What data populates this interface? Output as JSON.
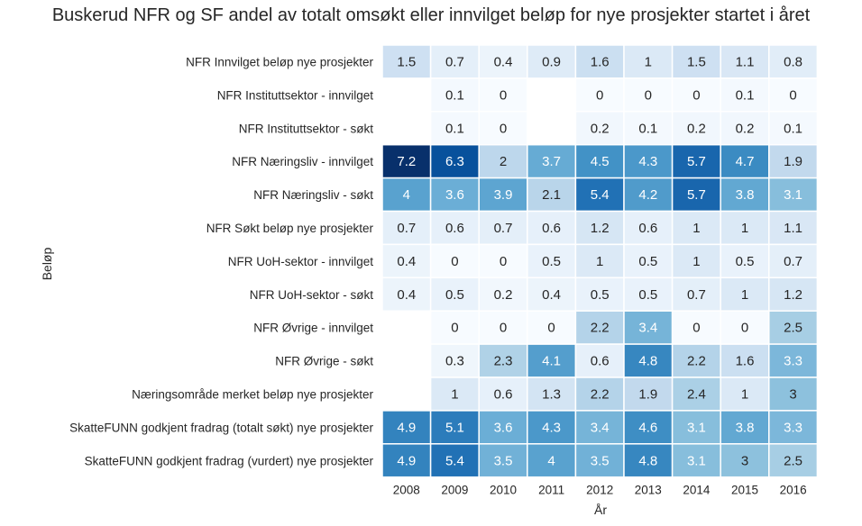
{
  "chart_data": {
    "type": "heatmap",
    "title": "Buskerud NFR og SF andel av totalt omsøkt eller innvilget beløp for nye prosjekter startet i året",
    "xlabel": "År",
    "ylabel": "Beløp",
    "colormap": "Blues",
    "vmin": 0,
    "vmax": 7.2,
    "x": [
      "2008",
      "2009",
      "2010",
      "2011",
      "2012",
      "2013",
      "2014",
      "2015",
      "2016"
    ],
    "y": [
      "NFR Innvilget beløp nye prosjekter",
      "NFR Instituttsektor - innvilget",
      "NFR Instituttsektor - søkt",
      "NFR Næringsliv - innvilget",
      "NFR Næringsliv - søkt",
      "NFR Søkt beløp nye prosjekter",
      "NFR UoH-sektor - innvilget",
      "NFR UoH-sektor - søkt",
      "NFR Øvrige - innvilget",
      "NFR Øvrige - søkt",
      "Næringsområde merket beløp nye prosjekter",
      "SkatteFUNN godkjent fradrag (totalt søkt) nye prosjekter",
      "SkatteFUNN godkjent fradrag (vurdert) nye prosjekter"
    ],
    "values": [
      [
        1.5,
        0.7,
        0.4,
        0.9,
        1.6,
        1,
        1.5,
        1.1,
        0.8
      ],
      [
        null,
        0.1,
        0,
        null,
        0,
        0,
        0,
        0.1,
        0
      ],
      [
        null,
        0.1,
        0,
        null,
        0.2,
        0.1,
        0.2,
        0.2,
        0.1
      ],
      [
        7.2,
        6.3,
        2,
        3.7,
        4.5,
        4.3,
        5.7,
        4.7,
        1.9
      ],
      [
        4,
        3.6,
        3.9,
        2.1,
        5.4,
        4.2,
        5.7,
        3.8,
        3.1
      ],
      [
        0.7,
        0.6,
        0.7,
        0.6,
        1.2,
        0.6,
        1,
        1,
        1.1
      ],
      [
        0.4,
        0,
        0,
        0.5,
        1,
        0.5,
        1,
        0.5,
        0.7
      ],
      [
        0.4,
        0.5,
        0.2,
        0.4,
        0.5,
        0.5,
        0.7,
        1,
        1.2
      ],
      [
        null,
        0,
        0,
        0,
        2.2,
        3.4,
        0,
        0,
        2.5
      ],
      [
        null,
        0.3,
        2.3,
        4.1,
        0.6,
        4.8,
        2.2,
        1.6,
        3.3
      ],
      [
        null,
        1,
        0.6,
        1.3,
        2.2,
        1.9,
        2.4,
        1,
        3
      ],
      [
        4.9,
        5.1,
        3.6,
        4.3,
        3.4,
        4.6,
        3.1,
        3.8,
        3.3
      ],
      [
        4.9,
        5.4,
        3.5,
        4,
        3.5,
        4.8,
        3.1,
        3,
        2.5
      ]
    ]
  }
}
